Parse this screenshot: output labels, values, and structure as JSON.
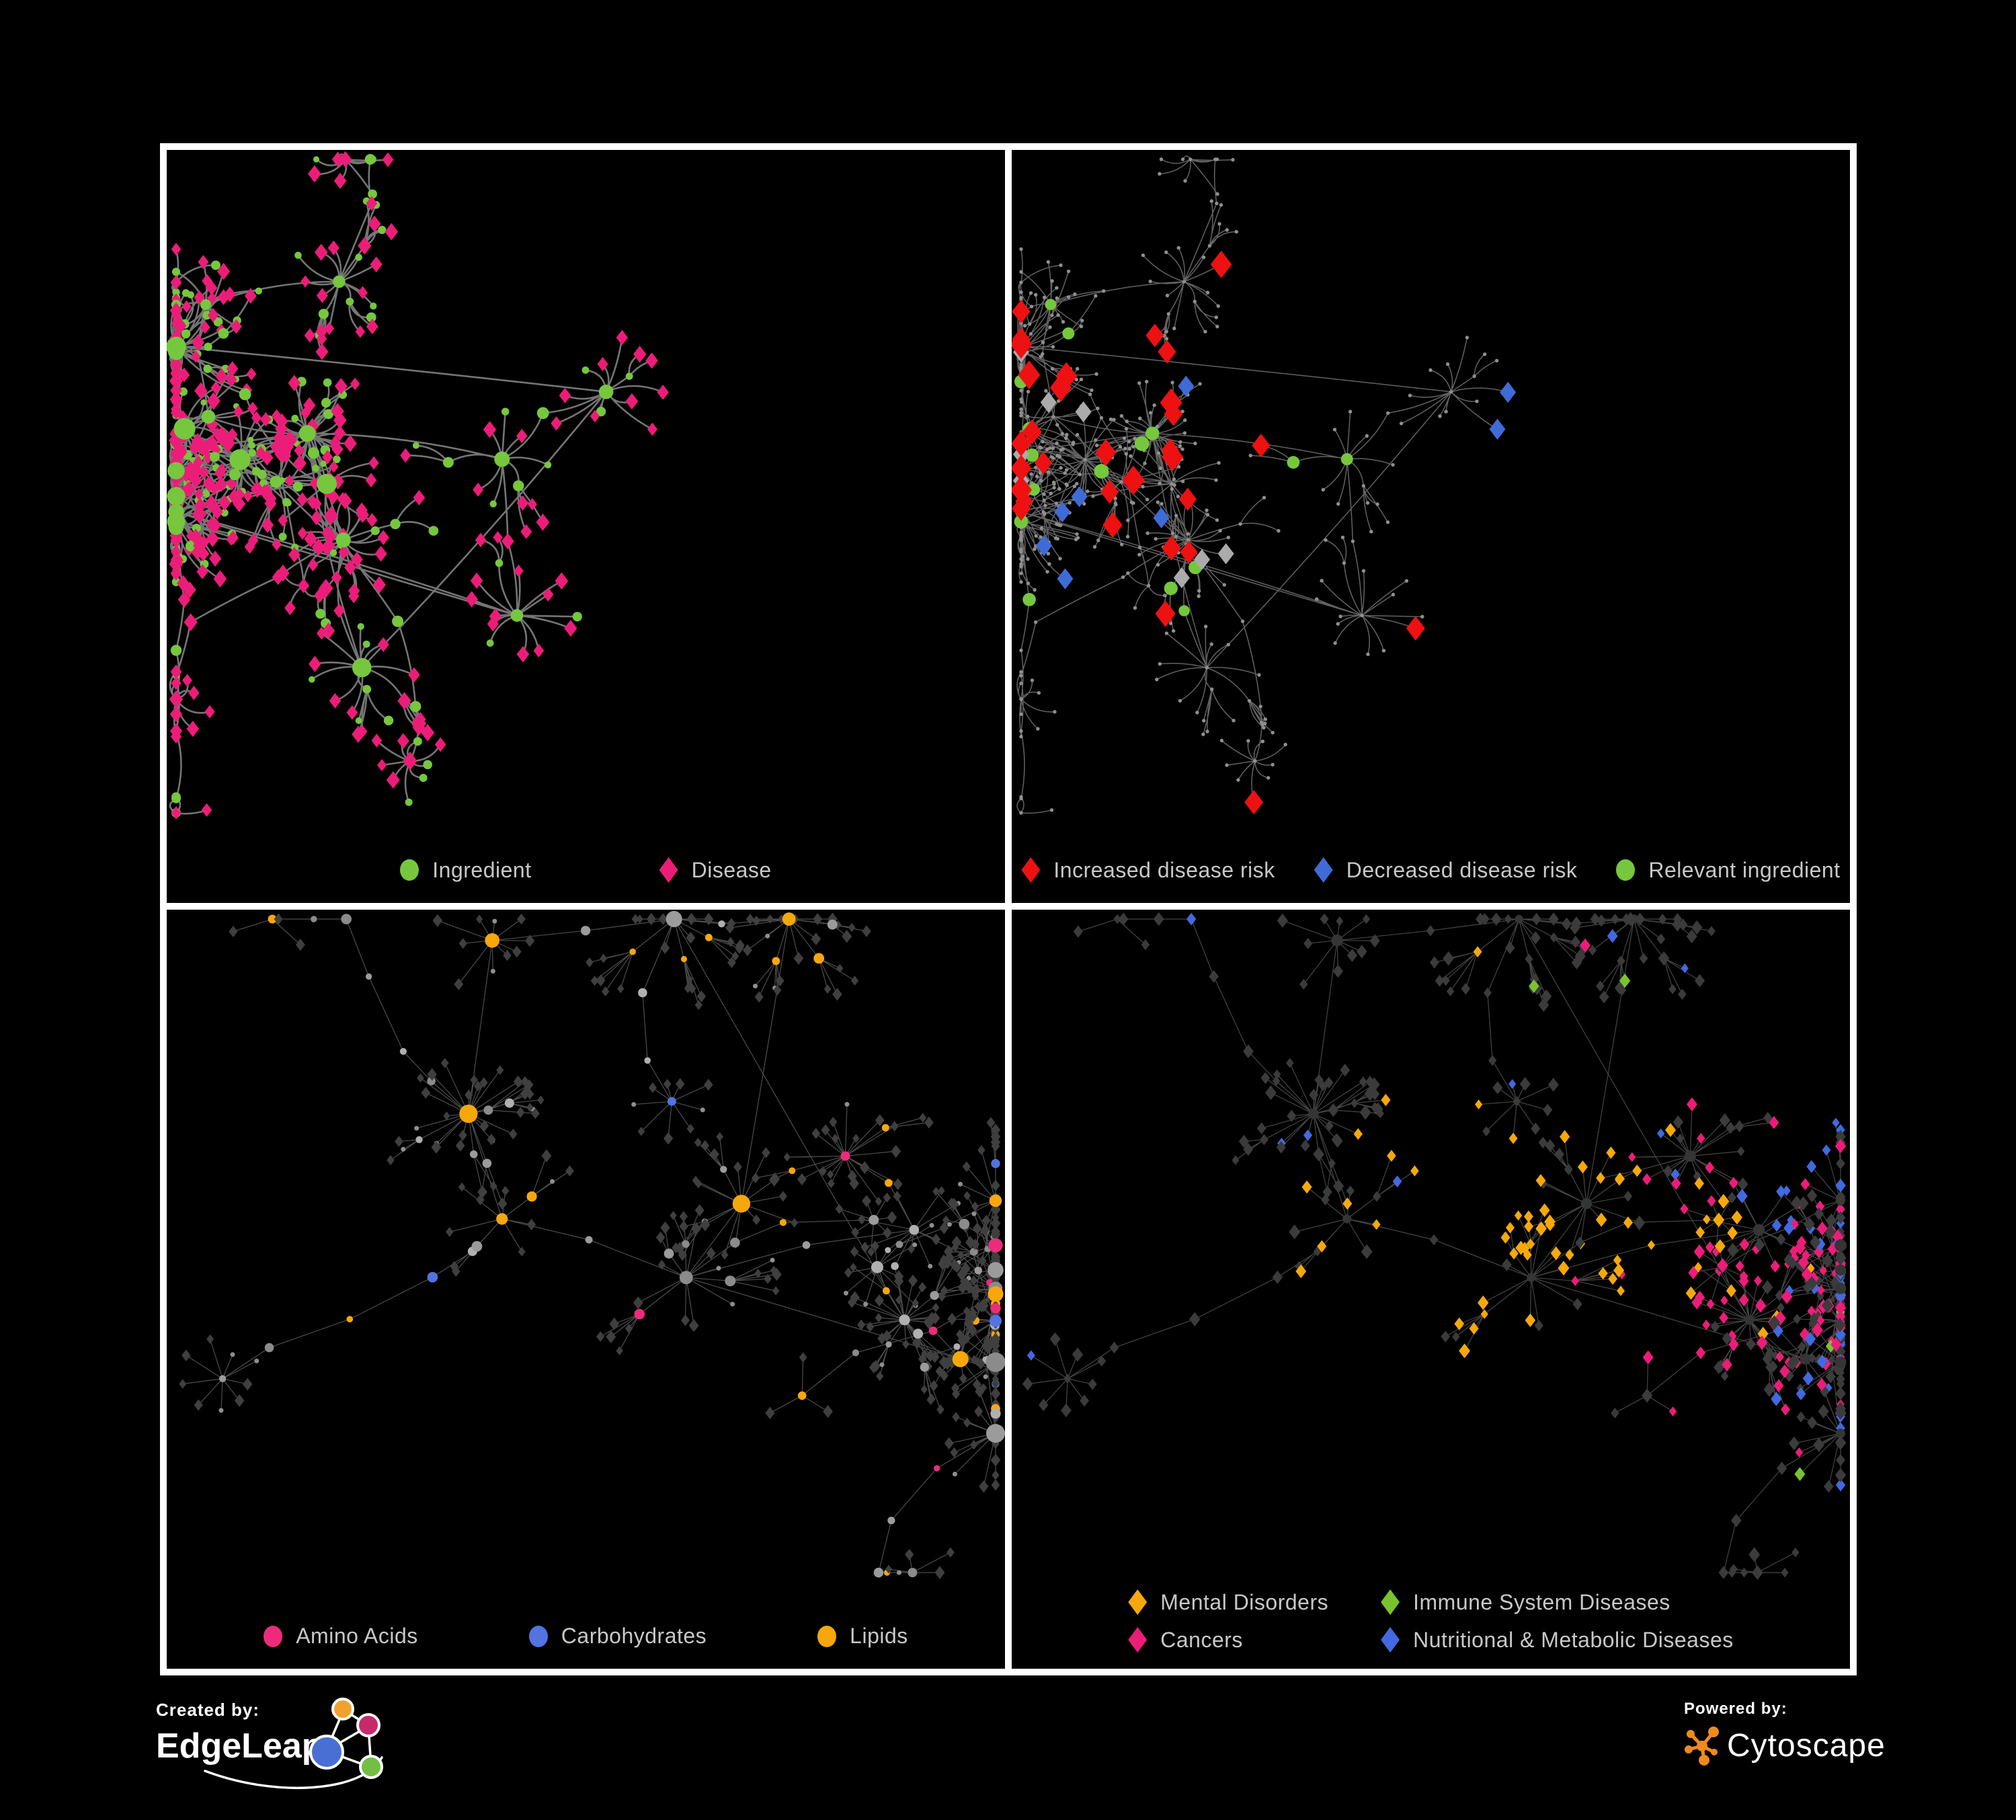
{
  "page": {
    "background": "#000000",
    "panel_border": "#ffffff",
    "legend_text_color": "#c8c8c8"
  },
  "panels": [
    {
      "name": "ingredient-disease-network",
      "legend": [
        {
          "label": "Ingredient",
          "shape": "circle",
          "color": "#76c73e"
        },
        {
          "label": "Disease",
          "shape": "diamond",
          "color": "#ec1d78"
        }
      ],
      "net": {
        "seed": 11,
        "styling": "p1",
        "edge": {
          "color": "#8a8a8a",
          "width": 2.6,
          "opacity": 0.85,
          "curve": 18
        },
        "palette": {
          "ingredient": "#76c73e",
          "disease": "#ec1d78"
        }
      }
    },
    {
      "name": "disease-risk-network",
      "legend": [
        {
          "label": "Increased disease risk",
          "shape": "diamond",
          "color": "#ee1111"
        },
        {
          "label": "Decreased disease risk",
          "shape": "diamond",
          "color": "#3f6bd8"
        },
        {
          "label": "Relevant ingredient",
          "shape": "circle",
          "color": "#76c73e"
        }
      ],
      "net": {
        "seed": 11,
        "styling": "p2",
        "edge": {
          "color": "#7b7b7b",
          "width": 1.5,
          "opacity": 0.8,
          "curve": 12
        },
        "palette": {
          "base": "#8f8f8f",
          "increased": "#ee1111",
          "decreased": "#3f6bd8",
          "unchanged": "#ababab",
          "relevant": "#76c73e"
        },
        "counts": {
          "increased": 30,
          "decreased": 7,
          "unchanged": 8,
          "relevant": 18
        }
      }
    },
    {
      "name": "nutrient-class-network",
      "legend": [
        {
          "label": "Amino Acids",
          "shape": "circle",
          "color": "#ec2c7a"
        },
        {
          "label": "Carbohydrates",
          "shape": "circle",
          "color": "#5273e0"
        },
        {
          "label": "Lipids",
          "shape": "circle",
          "color": "#f6a70b"
        }
      ],
      "net": {
        "seed": 23,
        "styling": "p3",
        "edge": {
          "color": "#ffffff",
          "width": 1.2,
          "opacity": 0.3,
          "curve": 0
        },
        "palette": {
          "background": "#3f3f3f",
          "other": "#9b9b9b",
          "amino": "#ec2c7a",
          "carb": "#5273e0",
          "lipid": "#f6a70b"
        },
        "probs": {
          "lipid": 0.3,
          "amino": 0.09,
          "carb": 0.06
        }
      }
    },
    {
      "name": "disease-category-network",
      "legend": [
        {
          "label": "Mental Disorders",
          "shape": "diamond",
          "color": "#f5a90b"
        },
        {
          "label": "Immune System Diseases",
          "shape": "diamond",
          "color": "#7ac32f"
        },
        {
          "label": "Cancers",
          "shape": "diamond",
          "color": "#ec1d78"
        },
        {
          "label": "Nutritional & Metabolic Diseases",
          "shape": "diamond",
          "color": "#4169e1"
        }
      ],
      "net": {
        "seed": 23,
        "styling": "p4",
        "edge": {
          "color": "#ffffff",
          "width": 1.2,
          "opacity": 0.27,
          "curve": 0
        },
        "palette": {
          "background": "#3b3b3b",
          "hub": "#353535",
          "mental": "#f5a90b",
          "immune": "#7ac32f",
          "cancer": "#ec1d78",
          "nutri": "#4169e1"
        }
      }
    }
  ],
  "footer": {
    "created_by": "Created by:",
    "edgeleap": "EdgeLeap",
    "powered_by": "Powered by:",
    "cytoscape": "Cytoscape",
    "edgeleap_colors": {
      "orange": "#f0a22e",
      "crimson": "#c72a6b",
      "blue": "#4a6fd4",
      "green": "#72bf44"
    },
    "cytoscape_orange": "#ef8b1d"
  }
}
